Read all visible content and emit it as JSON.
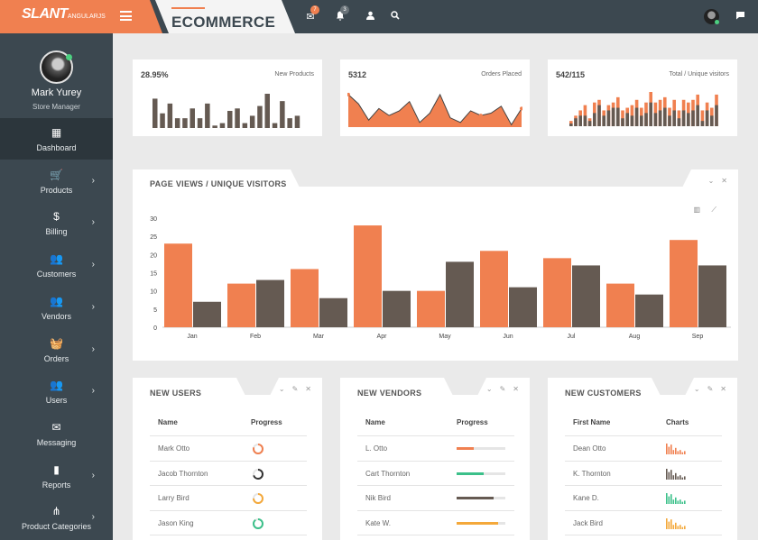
{
  "brand": {
    "logo": "SLANT",
    "logo_sub": "ANGULARJS",
    "page_title": "ECOMMERCE"
  },
  "topbar": {
    "mail_badge": "7",
    "bell_badge": "3",
    "icons": [
      "mail-icon",
      "bell-icon",
      "user-icon",
      "search-icon",
      "chat-icon"
    ]
  },
  "profile": {
    "name": "Mark Yurey",
    "role": "Store Manager"
  },
  "nav": [
    {
      "label": "Dashboard",
      "icon": "dashboard-icon",
      "glyph": "▦",
      "active": true,
      "chevron": false
    },
    {
      "label": "Products",
      "icon": "cart-icon",
      "glyph": "🛒",
      "chevron": true
    },
    {
      "label": "Billing",
      "icon": "dollar-icon",
      "glyph": "$",
      "chevron": true
    },
    {
      "label": "Customers",
      "icon": "people-icon",
      "glyph": "👥",
      "chevron": true
    },
    {
      "label": "Vendors",
      "icon": "add-people-icon",
      "glyph": "👥",
      "chevron": true
    },
    {
      "label": "Orders",
      "icon": "basket-icon",
      "glyph": "🧺",
      "chevron": true
    },
    {
      "label": "Users",
      "icon": "people-icon",
      "glyph": "👥",
      "chevron": true
    },
    {
      "label": "Messaging",
      "icon": "envelope-icon",
      "glyph": "✉",
      "chevron": false
    },
    {
      "label": "Reports",
      "icon": "bar-chart-icon",
      "glyph": "▮",
      "chevron": true
    },
    {
      "label": "Product Categories",
      "icon": "hierarchy-icon",
      "glyph": "⋔",
      "chevron": true
    }
  ],
  "stats": [
    {
      "value": "28.95%",
      "label": "New Products"
    },
    {
      "value": "5312",
      "label": "Orders Placed"
    },
    {
      "value": "542/115",
      "label": "Total / Unique visitors"
    }
  ],
  "sparks": {
    "new_products": [
      12,
      6,
      10,
      4,
      4,
      8,
      4,
      10,
      1,
      2,
      7,
      8,
      2,
      5,
      9,
      14,
      2,
      11,
      4,
      5
    ],
    "orders": [
      14,
      10,
      3,
      8,
      5,
      7,
      11,
      2,
      6,
      14,
      4,
      2,
      7,
      5,
      6,
      9,
      1,
      8
    ],
    "visitors_a": [
      1,
      3,
      4,
      4,
      2,
      5,
      8,
      4,
      6,
      7,
      7,
      3,
      5,
      4,
      7,
      4,
      5,
      9,
      5,
      6,
      7,
      4,
      6,
      3,
      6,
      5,
      6,
      8,
      2,
      6,
      4,
      8
    ],
    "visitors_b": [
      2,
      4,
      6,
      8,
      3,
      9,
      10,
      6,
      8,
      9,
      11,
      6,
      7,
      8,
      10,
      7,
      9,
      13,
      9,
      10,
      11,
      7,
      10,
      6,
      10,
      9,
      10,
      12,
      6,
      9,
      7,
      12
    ]
  },
  "chart_panel": {
    "title": "PAGE VIEWS / UNIQUE VISITORS",
    "tool_icons": [
      "bar-chart-icon",
      "line-chart-icon"
    ]
  },
  "chart_data": {
    "type": "bar",
    "categories": [
      "Jan",
      "Feb",
      "Mar",
      "Apr",
      "May",
      "Jun",
      "Jul",
      "Aug",
      "Sep"
    ],
    "series": [
      {
        "values": [
          23,
          12,
          16,
          28,
          10,
          21,
          19,
          12,
          24
        ],
        "color": "#f08050"
      },
      {
        "values": [
          7,
          13,
          8,
          10,
          18,
          11,
          17,
          9,
          17
        ],
        "color": "#655a52"
      }
    ],
    "ylim": [
      0,
      30
    ],
    "yticks": [
      0,
      5,
      10,
      15,
      20,
      25,
      30
    ]
  },
  "new_users": {
    "title": "NEW USERS",
    "col1": "Name",
    "col2": "Progress",
    "rows": [
      {
        "name": "Mark Otto",
        "color": "#f08050",
        "pct": 0.8
      },
      {
        "name": "Jacob Thornton",
        "color": "#333333",
        "pct": 0.7
      },
      {
        "name": "Larry Bird",
        "color": "#f4a83a",
        "pct": 0.75
      },
      {
        "name": "Jason King",
        "color": "#3cc08a",
        "pct": 0.9
      }
    ]
  },
  "new_vendors": {
    "title": "NEW VENDORS",
    "col1": "Name",
    "col2": "Progress",
    "rows": [
      {
        "name": "L. Otto",
        "color": "#f08050",
        "pct": 0.35
      },
      {
        "name": "Cart Thornton",
        "color": "#3cc08a",
        "pct": 0.55
      },
      {
        "name": "Nik Bird",
        "color": "#655a52",
        "pct": 0.75
      },
      {
        "name": "Kate W.",
        "color": "#f4a83a",
        "pct": 0.85
      }
    ]
  },
  "new_customers": {
    "title": "NEW CUSTOMERS",
    "col1": "First Name",
    "col2": "Charts",
    "rows": [
      {
        "name": "Dean Otto",
        "color": "#f08050"
      },
      {
        "name": "K. Thornton",
        "color": "#655a52"
      },
      {
        "name": "Kane D.",
        "color": "#3cc08a"
      },
      {
        "name": "Jack Bird",
        "color": "#f4a83a"
      }
    ],
    "mini": [
      10,
      7,
      9,
      4,
      6,
      3,
      4,
      2,
      3
    ]
  },
  "colors": {
    "accent": "#f08050",
    "dark": "#655a52",
    "sidebar": "#3c4850"
  }
}
